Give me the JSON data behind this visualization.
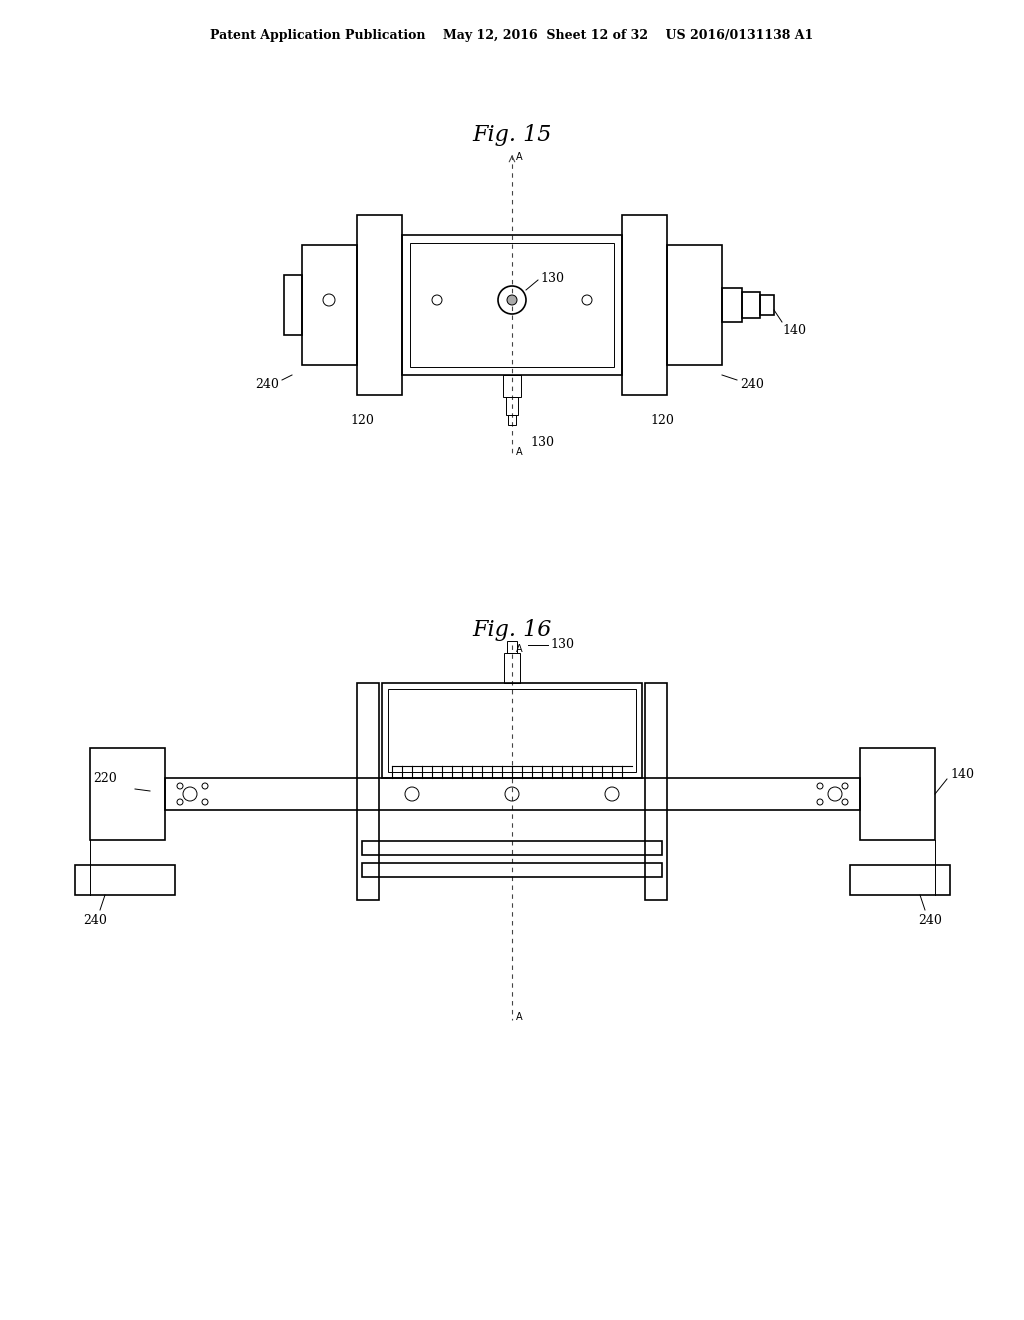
{
  "bg_color": "#ffffff",
  "line_color": "#000000",
  "line_color_light": "#555555",
  "header_text": "Patent Application Publication    May 12, 2016  Sheet 12 of 32    US 2016/0131138 A1",
  "fig15_title": "Fig. 15",
  "fig16_title": "Fig. 16",
  "label_130_fig15": "130",
  "label_140_fig15": "140",
  "label_240_left_fig15": "240",
  "label_240_right_fig15": "240",
  "label_120_left_fig15": "120",
  "label_120_right_fig15": "120",
  "label_130_bot_fig15": "130",
  "label_130_fig16": "130",
  "label_140_fig16": "140",
  "label_220_fig16": "220",
  "label_240_left_fig16": "240",
  "label_240_right_fig16": "240"
}
